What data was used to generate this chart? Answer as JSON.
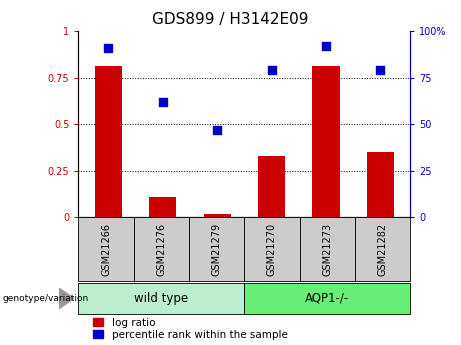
{
  "title": "GDS899 / H3142E09",
  "samples": [
    "GSM21266",
    "GSM21276",
    "GSM21279",
    "GSM21270",
    "GSM21273",
    "GSM21282"
  ],
  "log_ratio": [
    0.81,
    0.11,
    0.02,
    0.33,
    0.81,
    0.35
  ],
  "percentile_rank": [
    91,
    62,
    47,
    79,
    92,
    79
  ],
  "groups": [
    {
      "label": "wild type",
      "indices": [
        0,
        1,
        2
      ]
    },
    {
      "label": "AQP1-/-",
      "indices": [
        3,
        4,
        5
      ]
    }
  ],
  "bar_color": "#cc0000",
  "dot_color": "#0000cc",
  "left_axis_color": "#cc0000",
  "right_axis_color": "#0000cc",
  "ylim_left": [
    0,
    1.0
  ],
  "ylim_right": [
    0,
    100
  ],
  "yticks_left": [
    0,
    0.25,
    0.5,
    0.75,
    1.0
  ],
  "ytick_labels_left": [
    "0",
    "0.25",
    "0.5",
    "0.75",
    "1"
  ],
  "yticks_right": [
    0,
    25,
    50,
    75,
    100
  ],
  "ytick_labels_right": [
    "0",
    "25",
    "50",
    "75",
    "100%"
  ],
  "hlines": [
    0.25,
    0.5,
    0.75
  ],
  "genotype_label": "genotype/variation",
  "legend_entries": [
    "log ratio",
    "percentile rank within the sample"
  ],
  "bar_width": 0.5,
  "dot_size": 35,
  "title_fontsize": 11,
  "tick_fontsize": 7,
  "label_fontsize": 7.5,
  "group_label_fontsize": 8.5,
  "group_box_color_wt": "#bbeecc",
  "group_box_color_aqp": "#66ee77",
  "sample_box_color": "#cccccc",
  "bg_color": "#ffffff"
}
